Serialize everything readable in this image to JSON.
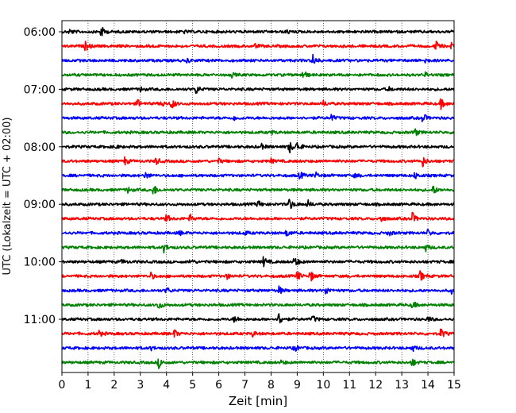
{
  "chart_data": {
    "type": "line",
    "title": "",
    "xlabel": "Zeit  [min]",
    "ylabel": "UTC (Lokalzeit = UTC + 02:00)",
    "x_ticks": [
      "0",
      "1",
      "2",
      "3",
      "4",
      "5",
      "6",
      "7",
      "8",
      "9",
      "10",
      "11",
      "12",
      "13",
      "14",
      "15"
    ],
    "y_tick_labels": [
      "06:00",
      "07:00",
      "08:00",
      "09:00",
      "10:00",
      "11:00"
    ],
    "xlim": [
      0,
      15
    ],
    "grid": "vertical dotted lines at each minute",
    "series_colors": [
      "#000000",
      "#ff0000",
      "#0000ff",
      "#008000"
    ],
    "traces": [
      {
        "start_time": "06:00",
        "color": "#000000",
        "events": [
          {
            "t": 0.3,
            "amp": 0.35
          },
          {
            "t": 1.5,
            "amp": 0.9
          },
          {
            "t": 4.6,
            "amp": 0.3
          },
          {
            "t": 8.6,
            "amp": 0.3
          }
        ]
      },
      {
        "start_time": "06:15",
        "color": "#ff0000",
        "events": [
          {
            "t": 0.9,
            "amp": 0.8
          },
          {
            "t": 3.3,
            "amp": 0.3
          },
          {
            "t": 7.4,
            "amp": 0.3
          },
          {
            "t": 14.3,
            "amp": 0.8
          },
          {
            "t": 14.9,
            "amp": 0.4
          }
        ]
      },
      {
        "start_time": "06:30",
        "color": "#0000ff",
        "events": [
          {
            "t": 4.8,
            "amp": 0.3
          },
          {
            "t": 9.6,
            "amp": 0.9
          },
          {
            "t": 13.9,
            "amp": 0.3
          }
        ]
      },
      {
        "start_time": "06:45",
        "color": "#008000",
        "events": [
          {
            "t": 6.5,
            "amp": 0.3
          },
          {
            "t": 9.2,
            "amp": 0.9
          },
          {
            "t": 13.9,
            "amp": 0.3
          }
        ]
      },
      {
        "start_time": "07:00",
        "color": "#000000",
        "events": [
          {
            "t": 3.0,
            "amp": 0.3
          },
          {
            "t": 5.1,
            "amp": 0.9
          },
          {
            "t": 12.5,
            "amp": 0.3
          }
        ]
      },
      {
        "start_time": "07:15",
        "color": "#ff0000",
        "events": [
          {
            "t": 2.9,
            "amp": 0.6
          },
          {
            "t": 3.8,
            "amp": 0.5
          },
          {
            "t": 4.2,
            "amp": 0.9
          },
          {
            "t": 10.0,
            "amp": 0.4
          },
          {
            "t": 14.5,
            "amp": 0.8
          }
        ]
      },
      {
        "start_time": "07:30",
        "color": "#0000ff",
        "events": [
          {
            "t": 6.6,
            "amp": 0.3
          },
          {
            "t": 10.3,
            "amp": 0.5
          },
          {
            "t": 13.8,
            "amp": 0.8
          }
        ]
      },
      {
        "start_time": "07:45",
        "color": "#008000",
        "events": [
          {
            "t": 8.0,
            "amp": 0.3
          },
          {
            "t": 13.5,
            "amp": 0.6
          }
        ]
      },
      {
        "start_time": "08:00",
        "color": "#000000",
        "events": [
          {
            "t": 2.0,
            "amp": 0.3
          },
          {
            "t": 7.6,
            "amp": 0.5
          },
          {
            "t": 8.7,
            "amp": 1.0
          },
          {
            "t": 9.0,
            "amp": 0.8
          }
        ]
      },
      {
        "start_time": "08:15",
        "color": "#ff0000",
        "events": [
          {
            "t": 2.4,
            "amp": 0.6
          },
          {
            "t": 3.6,
            "amp": 0.6
          },
          {
            "t": 6.0,
            "amp": 0.3
          },
          {
            "t": 8.0,
            "amp": 0.3
          },
          {
            "t": 13.8,
            "amp": 0.8
          }
        ]
      },
      {
        "start_time": "08:30",
        "color": "#0000ff",
        "events": [
          {
            "t": 3.2,
            "amp": 0.5
          },
          {
            "t": 9.1,
            "amp": 0.6
          },
          {
            "t": 9.7,
            "amp": 0.5
          },
          {
            "t": 11.2,
            "amp": 0.3
          },
          {
            "t": 13.5,
            "amp": 0.5
          }
        ]
      },
      {
        "start_time": "08:45",
        "color": "#008000",
        "events": [
          {
            "t": 2.5,
            "amp": 0.5
          },
          {
            "t": 3.5,
            "amp": 0.9
          },
          {
            "t": 14.2,
            "amp": 0.7
          }
        ]
      },
      {
        "start_time": "09:00",
        "color": "#000000",
        "events": [
          {
            "t": 7.5,
            "amp": 0.6
          },
          {
            "t": 8.7,
            "amp": 1.0
          },
          {
            "t": 9.4,
            "amp": 0.6
          }
        ]
      },
      {
        "start_time": "09:15",
        "color": "#ff0000",
        "events": [
          {
            "t": 4.0,
            "amp": 0.6
          },
          {
            "t": 4.9,
            "amp": 0.6
          },
          {
            "t": 12.2,
            "amp": 0.5
          },
          {
            "t": 13.4,
            "amp": 0.9
          }
        ]
      },
      {
        "start_time": "09:30",
        "color": "#0000ff",
        "events": [
          {
            "t": 4.5,
            "amp": 0.3
          },
          {
            "t": 7.0,
            "amp": 0.3
          },
          {
            "t": 8.6,
            "amp": 0.6
          },
          {
            "t": 12.5,
            "amp": 0.4
          },
          {
            "t": 14.0,
            "amp": 0.5
          }
        ]
      },
      {
        "start_time": "09:45",
        "color": "#008000",
        "events": [
          {
            "t": 3.9,
            "amp": 0.7
          },
          {
            "t": 13.9,
            "amp": 0.6
          }
        ]
      },
      {
        "start_time": "10:00",
        "color": "#000000",
        "events": [
          {
            "t": 2.3,
            "amp": 0.3
          },
          {
            "t": 4.9,
            "amp": 0.4
          },
          {
            "t": 7.7,
            "amp": 0.8
          },
          {
            "t": 8.9,
            "amp": 0.9
          }
        ]
      },
      {
        "start_time": "10:15",
        "color": "#ff0000",
        "events": [
          {
            "t": 3.4,
            "amp": 0.5
          },
          {
            "t": 6.3,
            "amp": 0.4
          },
          {
            "t": 9.0,
            "amp": 0.8
          },
          {
            "t": 9.5,
            "amp": 0.9
          },
          {
            "t": 13.7,
            "amp": 0.8
          }
        ]
      },
      {
        "start_time": "10:30",
        "color": "#0000ff",
        "events": [
          {
            "t": 4.0,
            "amp": 0.5
          },
          {
            "t": 8.3,
            "amp": 0.6
          },
          {
            "t": 10.1,
            "amp": 0.6
          },
          {
            "t": 14.9,
            "amp": 0.4
          }
        ]
      },
      {
        "start_time": "10:45",
        "color": "#008000",
        "events": [
          {
            "t": 3.7,
            "amp": 0.7
          },
          {
            "t": 13.4,
            "amp": 0.6
          }
        ]
      },
      {
        "start_time": "11:00",
        "color": "#000000",
        "events": [
          {
            "t": 6.6,
            "amp": 0.6
          },
          {
            "t": 8.3,
            "amp": 1.0
          },
          {
            "t": 9.6,
            "amp": 0.5
          },
          {
            "t": 14.0,
            "amp": 0.4
          }
        ]
      },
      {
        "start_time": "11:15",
        "color": "#ff0000",
        "events": [
          {
            "t": 1.4,
            "amp": 0.5
          },
          {
            "t": 4.3,
            "amp": 0.6
          },
          {
            "t": 7.3,
            "amp": 0.4
          },
          {
            "t": 14.5,
            "amp": 0.8
          }
        ]
      },
      {
        "start_time": "11:30",
        "color": "#0000ff",
        "events": [
          {
            "t": 3.4,
            "amp": 0.3
          },
          {
            "t": 8.9,
            "amp": 0.6
          },
          {
            "t": 13.4,
            "amp": 0.5
          }
        ]
      },
      {
        "start_time": "11:45",
        "color": "#008000",
        "events": [
          {
            "t": 3.7,
            "amp": 0.8
          },
          {
            "t": 8.4,
            "amp": 0.3
          },
          {
            "t": 13.4,
            "amp": 0.6
          }
        ]
      }
    ]
  }
}
